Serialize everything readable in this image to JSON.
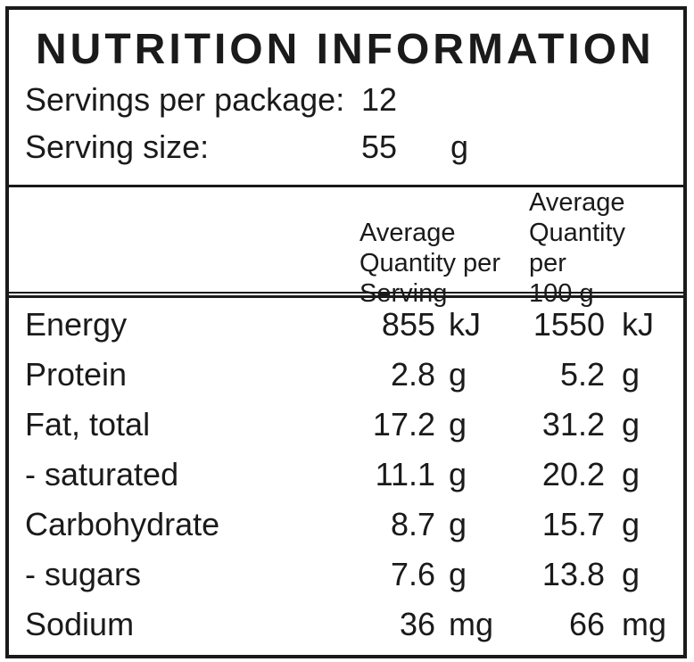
{
  "panel": {
    "title": "NUTRITION INFORMATION",
    "intro": {
      "servings_label": "Servings per package:",
      "servings_value": "12",
      "serving_size_label": "Serving size:",
      "serving_size_value": "55",
      "serving_size_unit": "g"
    },
    "column_headers": {
      "per_serving": {
        "lines": [
          "Average",
          "Quantity per",
          "Serving"
        ]
      },
      "per_100g": {
        "lines": [
          "Average",
          "Quantity per",
          "100 g"
        ]
      }
    },
    "rows": [
      {
        "name": "Energy",
        "serving_value": "855",
        "serving_unit": "kJ",
        "per100_value": "1550",
        "per100_unit": "kJ"
      },
      {
        "name": "Protein",
        "serving_value": "2.8",
        "serving_unit": "g",
        "per100_value": "5.2",
        "per100_unit": "g"
      },
      {
        "name": "Fat, total",
        "serving_value": "17.2",
        "serving_unit": "g",
        "per100_value": "31.2",
        "per100_unit": "g"
      },
      {
        "name": "- saturated",
        "serving_value": "11.1",
        "serving_unit": "g",
        "per100_value": "20.2",
        "per100_unit": "g"
      },
      {
        "name": "Carbohydrate",
        "serving_value": "8.7",
        "serving_unit": "g",
        "per100_value": "15.7",
        "per100_unit": "g"
      },
      {
        "name": "- sugars",
        "serving_value": "7.6",
        "serving_unit": "g",
        "per100_value": "13.8",
        "per100_unit": "g"
      },
      {
        "name": "Sodium",
        "serving_value": "36",
        "serving_unit": "mg",
        "per100_value": "66",
        "per100_unit": "mg"
      }
    ],
    "colors": {
      "text": "#1a1a1a",
      "border": "#1a1a1a",
      "background": "#ffffff"
    }
  }
}
